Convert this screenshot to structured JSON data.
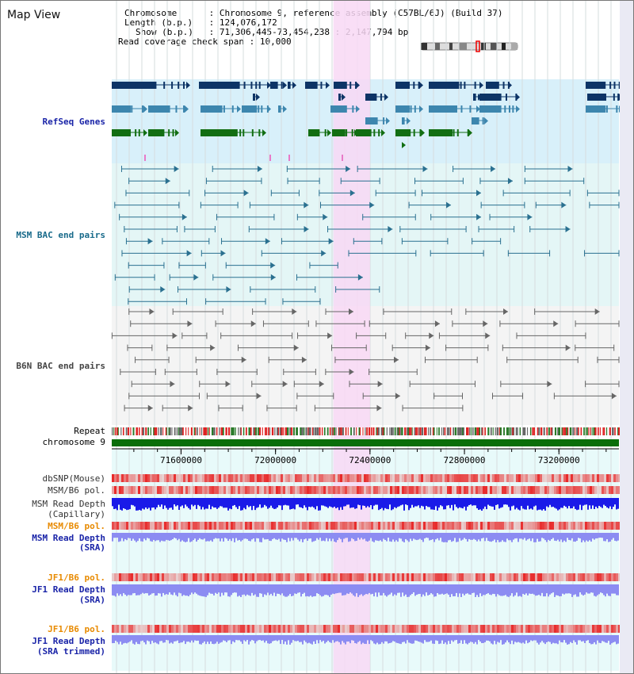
{
  "view": {
    "title": "Map View"
  },
  "info": {
    "chromosome_key": "Chromosome",
    "chromosome_val": "Chromosome 9, reference assembly (C57BL/6J) (Build 37)",
    "length_key": "Length (b.p.)",
    "length_val": "124,076,172",
    "show_key": "Show (b.p.)",
    "show_val": "71,306,445-73,454,238 : 2,147,794 bp",
    "coverage_key": "Read coverage check span",
    "coverage_val": "10,000"
  },
  "axis": {
    "start": 71306445,
    "end": 73454238,
    "ticks": [
      {
        "value": 71600000,
        "label": "71600000"
      },
      {
        "value": 72000000,
        "label": "72000000"
      },
      {
        "value": 72400000,
        "label": "72400000"
      },
      {
        "value": 72800000,
        "label": "72800000"
      },
      {
        "value": 73200000,
        "label": "73200000"
      }
    ]
  },
  "highlight": {
    "start": 72245000,
    "end": 72400000
  },
  "labels": {
    "refseq": "RefSeq Genes",
    "msm_bac": "MSM BAC end pairs",
    "b6n_bac": "B6N BAC end pairs",
    "repeat": "Repeat",
    "chromosome": "chromosome 9",
    "dbsnp": "dbSNP(Mouse)",
    "msm_b6_pol_1": "MSM/B6 pol.",
    "msm_depth_cap_1": "MSM Read Depth",
    "msm_depth_cap_2": "(Capillary)",
    "msm_b6_pol_2": "MSM/B6 pol.",
    "msm_depth_sra_1": "MSM Read Depth",
    "msm_depth_sra_2": "(SRA)",
    "jf1_b6_pol_1": "JF1/B6 pol.",
    "jf1_depth_sra_1": "JF1 Read Depth",
    "jf1_depth_sra_2": "(SRA)",
    "jf1_b6_pol_2": "JF1/B6 pol.",
    "jf1_depth_trim_1": "JF1 Read Depth",
    "jf1_depth_trim_2": "(SRA trimmed)"
  },
  "colors": {
    "refseq_bg": "#d8f0fa",
    "msm_bg": "#e4f6f6",
    "b6n_bg": "#f4f4f4",
    "highlight": "#f8d8f4",
    "gene_navy": "#0d3466",
    "gene_teal": "#3d86ae",
    "gene_green": "#126e12",
    "msm_pair": "#2a7090",
    "b6n_pair": "#666666",
    "chromosome_bar": "#0a6e0a",
    "depth_capillary": "#1a1ae8",
    "depth_sra": "#8c8cf2",
    "pol_red": "#e83030"
  }
}
